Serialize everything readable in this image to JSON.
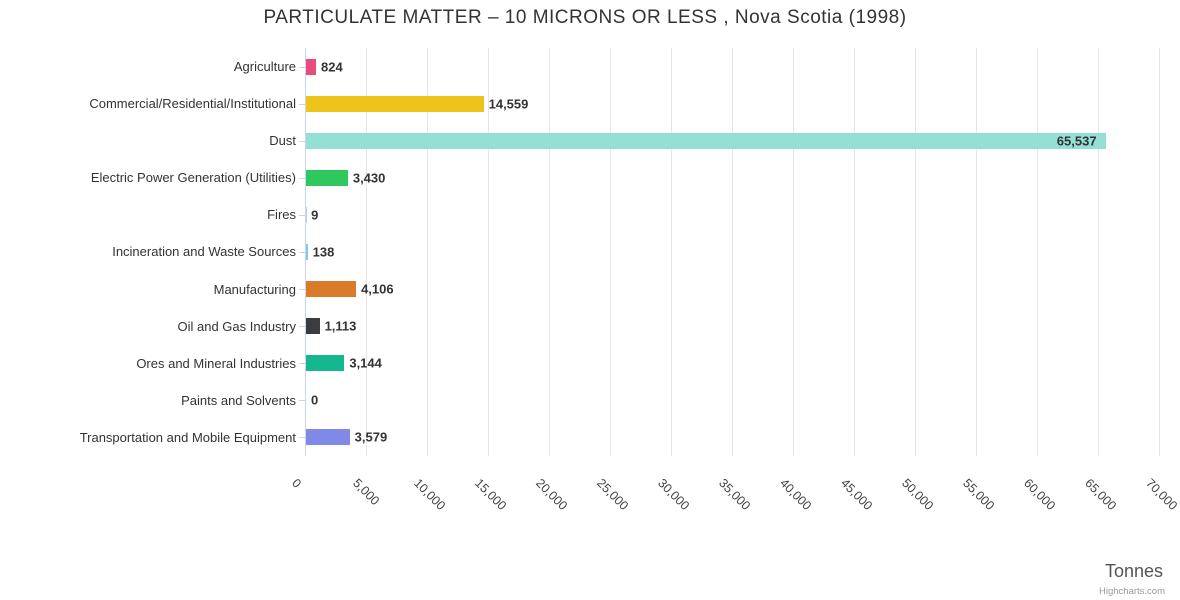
{
  "credits": "Highcharts.com",
  "chart_data": {
    "type": "bar",
    "orientation": "horizontal",
    "title": "PARTICULATE MATTER – 10 MICRONS OR LESS , Nova Scotia (1998)",
    "xlabel": "Tonnes",
    "ylabel": "",
    "grid": true,
    "legend": false,
    "xlim": [
      0,
      70900
    ],
    "categories": [
      "Agriculture",
      "Commercial/Residential/Institutional",
      "Dust",
      "Electric Power Generation (Utilities)",
      "Fires",
      "Incineration and Waste Sources",
      "Manufacturing",
      "Oil and Gas Industry",
      "Ores and Mineral Industries",
      "Paints and Solvents",
      "Transportation and Mobile Equipment"
    ],
    "values": [
      824,
      14559,
      65537,
      3430,
      9,
      138,
      4106,
      1113,
      3144,
      0,
      3579
    ],
    "value_labels": [
      "824",
      "14,559",
      "65,537",
      "3,430",
      "9",
      "138",
      "4,106",
      "1,113",
      "3,144",
      "0",
      "3,579"
    ],
    "colors": [
      "#ea4b7f",
      "#eec31c",
      "#95e0d5",
      "#2ec85e",
      "#cccccc",
      "#7ecdf0",
      "#da7b2c",
      "#3c3b41",
      "#14b78e",
      "#cccccc",
      "#8189e8"
    ],
    "tick_values": [
      0,
      5000,
      10000,
      15000,
      20000,
      25000,
      30000,
      35000,
      40000,
      45000,
      50000,
      55000,
      60000,
      65000,
      70000
    ],
    "tick_labels": [
      "0",
      "5,000",
      "10,000",
      "15,000",
      "20,000",
      "25,000",
      "30,000",
      "35,000",
      "40,000",
      "45,000",
      "50,000",
      "55,000",
      "60,000",
      "65,000",
      "70,000"
    ]
  }
}
